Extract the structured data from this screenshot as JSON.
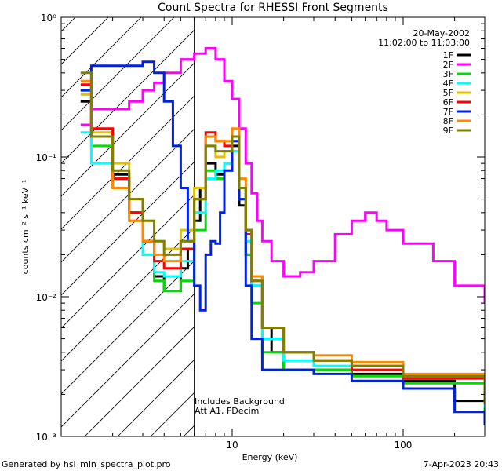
{
  "chart_data": {
    "type": "line",
    "title": "Count Spectra for RHESSI Front Segments",
    "xlabel": "Energy (keV)",
    "ylabel": "counts cm⁻² s⁻¹ keV⁻¹",
    "x_scale": "log",
    "y_scale": "log",
    "xlim": [
      1,
      300
    ],
    "ylim": [
      0.001,
      1
    ],
    "x_tick_labels": [
      "10",
      "100"
    ],
    "y_tick_labels": [
      "10⁻³",
      "10⁻²",
      "10⁻¹",
      "10⁰"
    ],
    "grid": false,
    "legend_position": "top-right",
    "header_date": "20-May-2002",
    "header_time": "11:02:00 to 11:03:00",
    "annotation_lines": [
      "Includes Background",
      "Att A1, FDecim"
    ],
    "shaded_region_xmax": 6,
    "series": [
      {
        "name": "1F",
        "color": "#000000",
        "x": [
          1.3,
          1.5,
          2,
          2.5,
          3,
          3.5,
          4,
          5,
          5.5,
          6,
          6.5,
          7,
          8,
          9,
          10,
          11,
          12,
          13,
          15,
          17,
          20,
          30,
          50,
          100,
          200,
          300
        ],
        "y": [
          0.25,
          0.14,
          0.075,
          0.04,
          0.025,
          0.014,
          0.011,
          0.016,
          0.022,
          0.035,
          0.06,
          0.09,
          0.075,
          0.09,
          0.12,
          0.045,
          0.02,
          0.012,
          0.006,
          0.004,
          0.003,
          0.003,
          0.0028,
          0.0025,
          0.0018,
          0.0015
        ]
      },
      {
        "name": "2F",
        "color": "#ff00ff",
        "x": [
          1.3,
          1.5,
          2,
          2.5,
          3,
          3.5,
          4,
          5,
          6,
          7,
          8,
          9,
          10,
          11,
          12,
          13,
          14,
          15,
          17,
          20,
          25,
          30,
          40,
          50,
          60,
          70,
          80,
          100,
          150,
          200,
          300
        ],
        "y": [
          0.17,
          0.22,
          0.22,
          0.25,
          0.3,
          0.34,
          0.4,
          0.5,
          0.55,
          0.6,
          0.5,
          0.35,
          0.26,
          0.16,
          0.09,
          0.055,
          0.035,
          0.025,
          0.018,
          0.014,
          0.015,
          0.018,
          0.028,
          0.035,
          0.04,
          0.035,
          0.03,
          0.024,
          0.018,
          0.012,
          0.009
        ]
      },
      {
        "name": "3F",
        "color": "#00dd00",
        "x": [
          1.3,
          1.5,
          2,
          2.5,
          3,
          3.5,
          4,
          5,
          6,
          7,
          8,
          9,
          10,
          11,
          12,
          13,
          15,
          20,
          30,
          50,
          100,
          300
        ],
        "y": [
          0.3,
          0.12,
          0.07,
          0.04,
          0.02,
          0.013,
          0.011,
          0.013,
          0.03,
          0.08,
          0.07,
          0.08,
          0.11,
          0.05,
          0.02,
          0.009,
          0.004,
          0.003,
          0.003,
          0.0027,
          0.0024,
          0.0014
        ]
      },
      {
        "name": "4F",
        "color": "#00ffff",
        "x": [
          1.3,
          1.5,
          2,
          2.5,
          3,
          3.5,
          4,
          5,
          6,
          7,
          8,
          9,
          10,
          11,
          12,
          13,
          15,
          20,
          30,
          50,
          100,
          300
        ],
        "y": [
          0.15,
          0.09,
          0.06,
          0.035,
          0.02,
          0.015,
          0.014,
          0.018,
          0.04,
          0.07,
          0.08,
          0.09,
          0.11,
          0.05,
          0.025,
          0.012,
          0.005,
          0.0035,
          0.0032,
          0.003,
          0.0026,
          0.0016
        ]
      },
      {
        "name": "5F",
        "color": "#e0c000",
        "x": [
          1.3,
          1.5,
          2,
          2.5,
          3,
          3.5,
          4,
          5,
          6,
          7,
          8,
          9,
          10,
          11,
          12,
          13,
          15,
          20,
          30,
          50,
          100,
          300
        ],
        "y": [
          0.28,
          0.15,
          0.09,
          0.05,
          0.035,
          0.025,
          0.022,
          0.03,
          0.06,
          0.12,
          0.1,
          0.11,
          0.13,
          0.06,
          0.03,
          0.014,
          0.006,
          0.004,
          0.0035,
          0.0032,
          0.0027,
          0.0017
        ]
      },
      {
        "name": "6F",
        "color": "#ff0000",
        "x": [
          1.3,
          1.5,
          2,
          2.5,
          3,
          3.5,
          4,
          5,
          6,
          7,
          8,
          9,
          10,
          11,
          12,
          13,
          15,
          20,
          30,
          50,
          100,
          300
        ],
        "y": [
          0.33,
          0.16,
          0.07,
          0.04,
          0.025,
          0.018,
          0.016,
          0.022,
          0.05,
          0.15,
          0.13,
          0.12,
          0.14,
          0.06,
          0.028,
          0.013,
          0.006,
          0.004,
          0.0035,
          0.003,
          0.0026,
          0.0017
        ]
      },
      {
        "name": "7F",
        "color": "#0022dd",
        "x": [
          1.3,
          1.5,
          2,
          2.5,
          3,
          3.5,
          4,
          4.5,
          5,
          5.5,
          6,
          6.5,
          7,
          7.5,
          8,
          8.5,
          9,
          10,
          11,
          12,
          13,
          15,
          20,
          30,
          50,
          100,
          200,
          300
        ],
        "y": [
          0.3,
          0.45,
          0.45,
          0.45,
          0.48,
          0.4,
          0.25,
          0.12,
          0.06,
          0.025,
          0.012,
          0.008,
          0.02,
          0.025,
          0.024,
          0.04,
          0.08,
          0.13,
          0.05,
          0.012,
          0.005,
          0.003,
          0.003,
          0.0028,
          0.0025,
          0.0022,
          0.0015,
          0.0012
        ]
      },
      {
        "name": "8F",
        "color": "#ff8800",
        "x": [
          1.3,
          1.5,
          2,
          2.5,
          3,
          3.5,
          4,
          5,
          6,
          7,
          8,
          9,
          10,
          11,
          12,
          13,
          15,
          20,
          30,
          50,
          100,
          300
        ],
        "y": [
          0.35,
          0.14,
          0.06,
          0.035,
          0.025,
          0.02,
          0.018,
          0.025,
          0.05,
          0.14,
          0.13,
          0.13,
          0.16,
          0.07,
          0.03,
          0.014,
          0.006,
          0.004,
          0.0038,
          0.0034,
          0.0028,
          0.0018
        ]
      },
      {
        "name": "9F",
        "color": "#808000",
        "x": [
          1.3,
          1.5,
          2,
          2.5,
          3,
          3.5,
          4,
          5,
          6,
          7,
          8,
          9,
          10,
          11,
          12,
          13,
          15,
          20,
          30,
          50,
          100,
          300
        ],
        "y": [
          0.4,
          0.14,
          0.08,
          0.05,
          0.035,
          0.025,
          0.02,
          0.025,
          0.05,
          0.12,
          0.11,
          0.11,
          0.14,
          0.06,
          0.03,
          0.013,
          0.006,
          0.004,
          0.0035,
          0.0032,
          0.0027,
          0.0017
        ]
      }
    ]
  },
  "footer": {
    "left": "Generated by hsi_min_spectra_plot.pro",
    "right": "7-Apr-2023 20:43"
  }
}
